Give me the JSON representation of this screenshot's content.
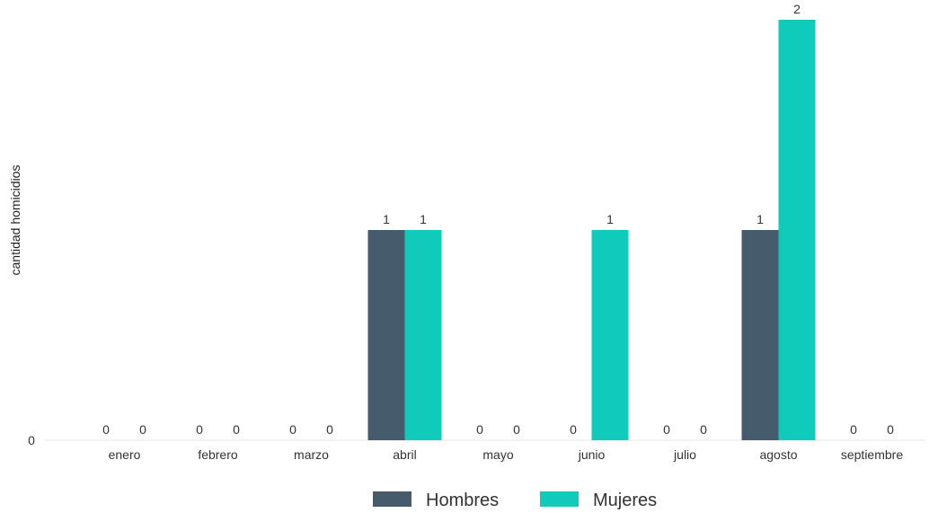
{
  "chart_data": {
    "type": "bar",
    "ylabel": "cantidad homicidios",
    "xlabel": "",
    "y_tick_labels": [
      "0"
    ],
    "ylim": [
      0,
      2
    ],
    "categories": [
      "enero",
      "febrero",
      "marzo",
      "abril",
      "mayo",
      "junio",
      "julio",
      "agosto",
      "septiembre"
    ],
    "series": [
      {
        "name": "Hombres",
        "color": "#465b6b",
        "values": [
          0,
          0,
          0,
          1,
          0,
          0,
          0,
          1,
          0
        ],
        "labels": [
          "0",
          "0",
          "0",
          "1",
          "0",
          "0",
          "0",
          "1",
          "0"
        ]
      },
      {
        "name": "Mujeres",
        "color": "#10cbb9",
        "values": [
          0,
          0,
          0,
          1,
          0,
          1,
          0,
          2,
          0
        ],
        "labels": [
          "0",
          "0",
          "0",
          "1",
          "0",
          "1",
          "0",
          "2",
          "0"
        ]
      }
    ],
    "grid": false,
    "legend_position": "bottom"
  }
}
